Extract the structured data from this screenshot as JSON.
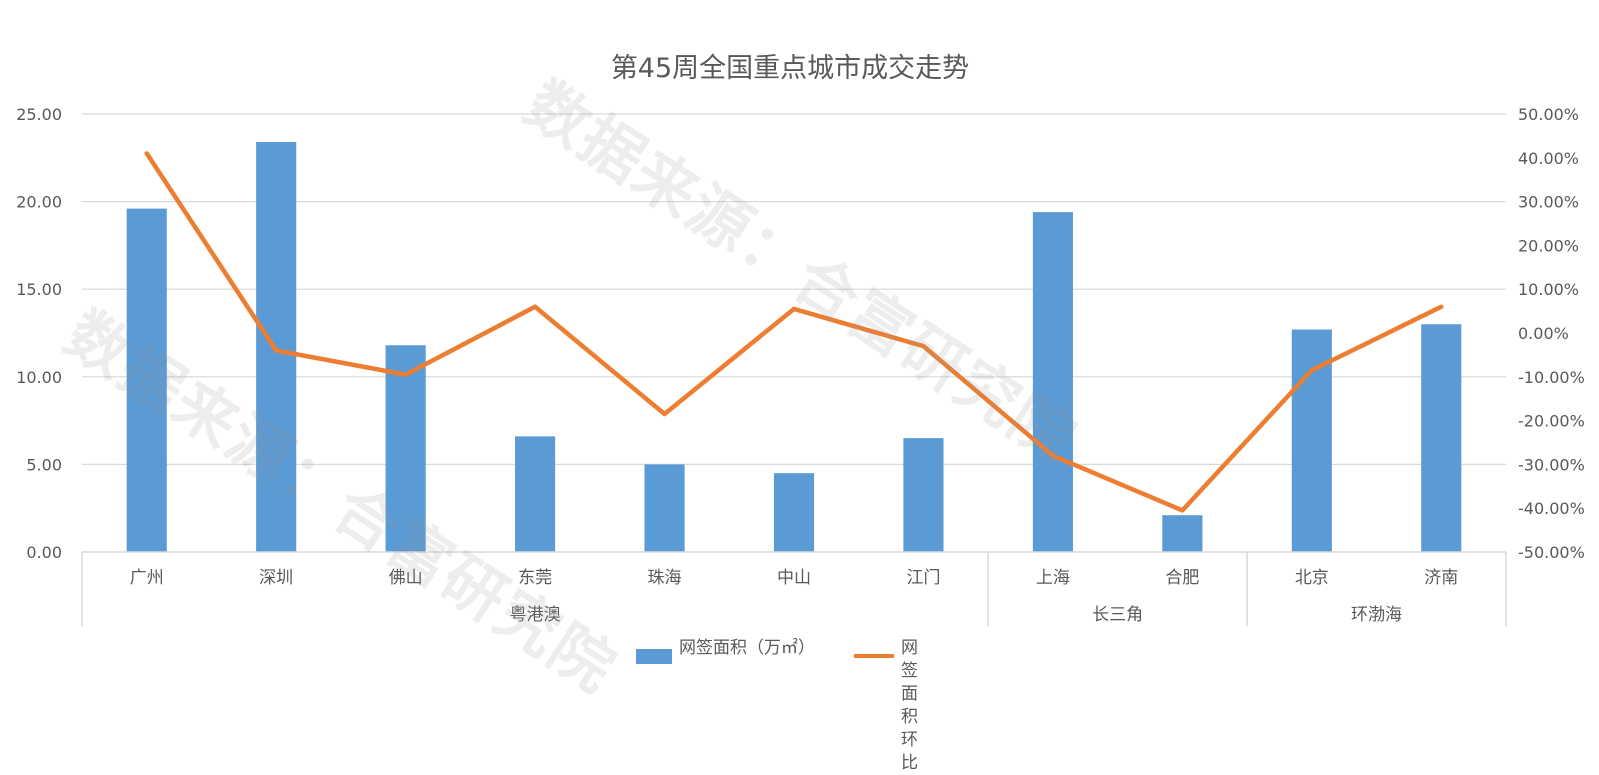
{
  "chart_data": {
    "type": "bar",
    "title": "第45周全国重点城市成交走势",
    "categories": [
      "广州",
      "深圳",
      "佛山",
      "东莞",
      "珠海",
      "中山",
      "江门",
      "上海",
      "合肥",
      "北京",
      "济南"
    ],
    "groups": [
      {
        "label": "粤港澳",
        "count": 7
      },
      {
        "label": "长三角",
        "count": 2
      },
      {
        "label": "环渤海",
        "count": 2
      }
    ],
    "series": [
      {
        "name": "网签面积（万㎡）",
        "type": "bar",
        "axis": "left",
        "values": [
          19.6,
          23.4,
          11.8,
          6.6,
          5.0,
          4.5,
          6.5,
          19.4,
          2.1,
          12.7,
          13.0
        ]
      },
      {
        "name": "网签面积环比",
        "type": "line",
        "axis": "right",
        "values": [
          41.0,
          -4.0,
          -9.5,
          6.0,
          -18.5,
          5.5,
          -3.0,
          -28.0,
          -40.5,
          -8.5,
          6.0
        ]
      }
    ],
    "y_left": {
      "min": 0,
      "max": 25,
      "ticks": [
        "0.00",
        "5.00",
        "10.00",
        "15.00",
        "20.00",
        "25.00"
      ]
    },
    "y_right": {
      "min": -50,
      "max": 50,
      "ticks": [
        "-50.00%",
        "-40.00%",
        "-30.00%",
        "-20.00%",
        "-10.00%",
        "0.00%",
        "10.00%",
        "20.00%",
        "30.00%",
        "40.00%",
        "50.00%"
      ]
    },
    "grid": true,
    "legend_position": "bottom",
    "colors": {
      "bar": "#5b9bd5",
      "line": "#ed7d31",
      "grid": "#d9d9d9",
      "text": "#595959"
    }
  },
  "watermark": {
    "text": "数据来源：合富研究院"
  },
  "legend": {
    "bar_label": "网签面积（万㎡）",
    "line_label_1": "网签面积",
    "line_label_2": "环比"
  }
}
